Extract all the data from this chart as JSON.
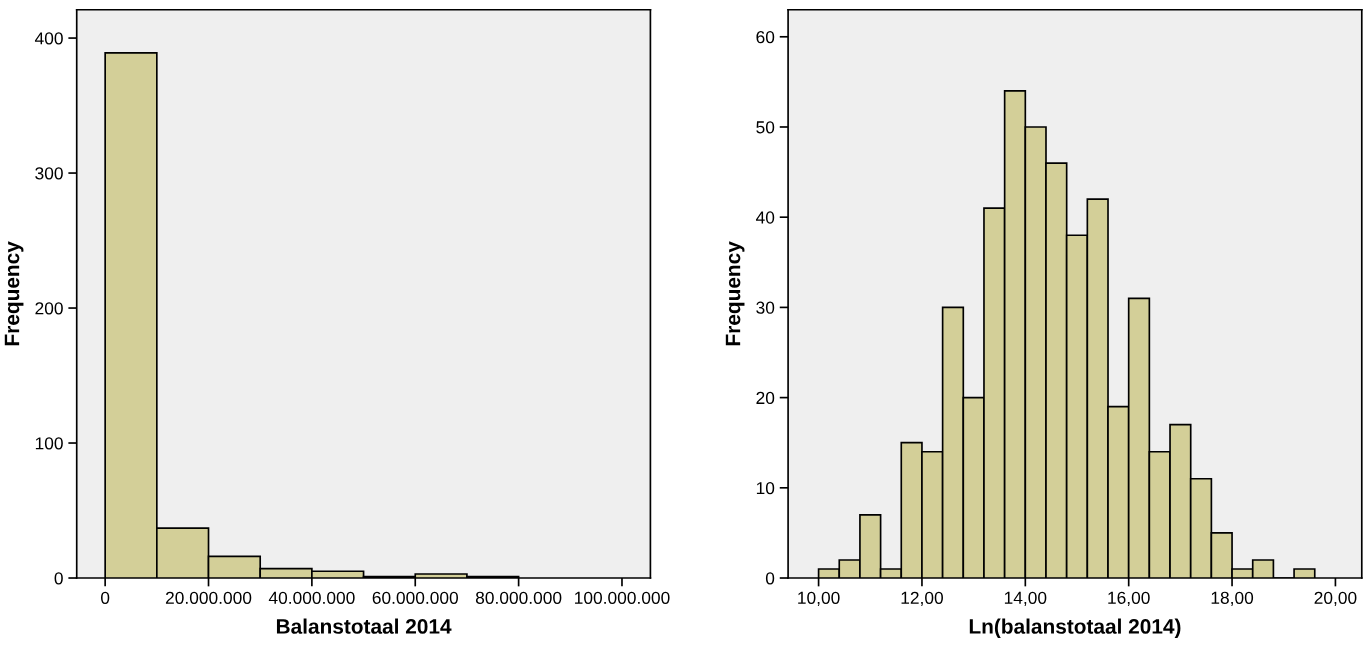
{
  "chart_data": [
    {
      "type": "histogram",
      "xlabel": "Balanstotaal 2014",
      "ylabel": "Frequency",
      "color": "#d3cf98",
      "bins": [
        0,
        10000000,
        20000000,
        30000000,
        40000000,
        50000000,
        60000000,
        70000000,
        80000000
      ],
      "values": [
        389,
        37,
        16,
        7,
        5,
        1,
        3,
        1
      ],
      "xlim": [
        -5500000,
        105500000
      ],
      "ylim": [
        0,
        421
      ],
      "xticks": [
        0,
        {
          "value": 20000000,
          "label": "20.000.000"
        },
        {
          "value": 40000000,
          "label": "40.000.000"
        },
        {
          "value": 60000000,
          "label": "60.000.000"
        },
        {
          "value": 80000000,
          "label": "80.000.000"
        },
        {
          "value": 100000000,
          "label": "100.000.000"
        }
      ],
      "yticks": [
        0,
        100,
        200,
        300,
        400
      ],
      "grid": false
    },
    {
      "type": "histogram",
      "xlabel": "Ln(balanstotaal 2014)",
      "ylabel": "Frequency",
      "color": "#d3cf98",
      "bins": [
        10.0,
        10.4,
        10.8,
        11.2,
        11.6,
        12.0,
        12.4,
        12.8,
        13.2,
        13.6,
        14.0,
        14.4,
        14.8,
        15.2,
        15.6,
        16.0,
        16.4,
        16.8,
        17.2,
        17.6,
        18.0,
        18.4,
        18.8,
        19.2,
        19.6
      ],
      "values": [
        1,
        2,
        7,
        1,
        15,
        14,
        30,
        20,
        41,
        54,
        50,
        46,
        38,
        42,
        19,
        31,
        14,
        17,
        11,
        5,
        1,
        2,
        0,
        1
      ],
      "xlim": [
        9.41,
        20.51
      ],
      "ylim": [
        0,
        63
      ],
      "xticks": [
        {
          "value": 10,
          "label": "10,00"
        },
        {
          "value": 12,
          "label": "12,00"
        },
        {
          "value": 14,
          "label": "14,00"
        },
        {
          "value": 16,
          "label": "16,00"
        },
        {
          "value": 18,
          "label": "18,00"
        },
        {
          "value": 20,
          "label": "20,00"
        }
      ],
      "yticks": [
        0,
        10,
        20,
        30,
        40,
        50,
        60
      ],
      "grid": false
    }
  ]
}
